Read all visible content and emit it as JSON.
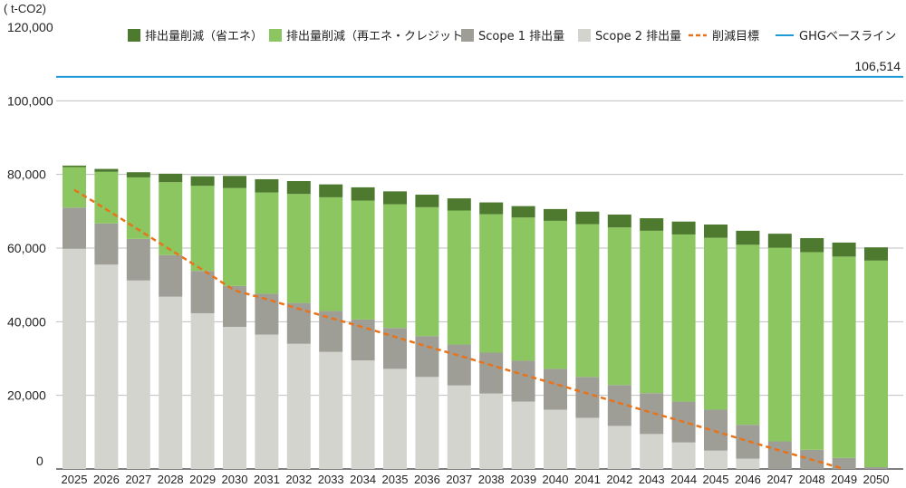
{
  "chart_data": {
    "type": "bar",
    "stacked": true,
    "unit_label": "( t-CO2)",
    "ylim": [
      0,
      120000
    ],
    "y_ticks": [
      {
        "value": 0,
        "label": "0"
      },
      {
        "value": 20000,
        "label": "20,000"
      },
      {
        "value": 40000,
        "label": "40,000"
      },
      {
        "value": 60000,
        "label": "60,000"
      },
      {
        "value": 80000,
        "label": "80,000"
      },
      {
        "value": 100000,
        "label": "100,000"
      },
      {
        "value": 120000,
        "label": "120,000"
      }
    ],
    "categories": [
      "2025",
      "2026",
      "2027",
      "2028",
      "2029",
      "2030",
      "2031",
      "2032",
      "2033",
      "2034",
      "2035",
      "2036",
      "2037",
      "2038",
      "2039",
      "2040",
      "2041",
      "2042",
      "2043",
      "2044",
      "2045",
      "2046",
      "2047",
      "2048",
      "2049",
      "2050"
    ],
    "series": [
      {
        "name": "Scope 2 排出量",
        "color": "#d4d4cf",
        "values": [
          59800,
          55500,
          51200,
          46800,
          42300,
          38600,
          36500,
          34000,
          31800,
          29500,
          27200,
          25000,
          22700,
          20500,
          18300,
          16100,
          13900,
          11700,
          9500,
          7200,
          5000,
          2800,
          0,
          0,
          0,
          0
        ]
      },
      {
        "name": "Scope 1 排出量",
        "color": "#9e9e97",
        "values": [
          11200,
          11200,
          11300,
          11300,
          11500,
          11100,
          11100,
          11100,
          11100,
          11100,
          11100,
          11100,
          11100,
          11100,
          11100,
          11100,
          11100,
          11100,
          11100,
          11100,
          11100,
          9200,
          7500,
          5200,
          3000,
          500
        ]
      },
      {
        "name": "排出量削減（再エネ・クレジット）",
        "color": "#8bc660",
        "values": [
          11000,
          14000,
          16700,
          19800,
          23100,
          26600,
          27500,
          29600,
          30900,
          32300,
          33600,
          35000,
          36400,
          37600,
          38900,
          40200,
          41500,
          42800,
          44100,
          45400,
          46700,
          48900,
          52600,
          53700,
          54700,
          56100
        ]
      },
      {
        "name": "排出量削減（省エネ）",
        "color": "#4d7a2e",
        "values": [
          400,
          800,
          1400,
          2300,
          2600,
          3300,
          3600,
          3500,
          3500,
          3600,
          3500,
          3400,
          3300,
          3200,
          3100,
          3200,
          3400,
          3500,
          3400,
          3500,
          3600,
          3800,
          3800,
          3800,
          3800,
          3600
        ]
      }
    ],
    "reduction_target": {
      "name": "削減目標",
      "color": "#e8731a",
      "values": [
        75800,
        70500,
        65000,
        59500,
        54100,
        48500,
        46100,
        43500,
        41000,
        38500,
        35900,
        33300,
        30800,
        28200,
        25600,
        23100,
        20500,
        17900,
        15300,
        12800,
        10200,
        7600,
        5000,
        2500,
        0,
        0
      ]
    },
    "baseline": {
      "name": "GHGベースライン",
      "color": "#1e9bd7",
      "value": 106514,
      "label": "106,514"
    },
    "legend_order": [
      "排出量削減（省エネ）",
      "排出量削減（再エネ・クレジット）",
      "Scope 1 排出量",
      "Scope 2 排出量",
      "削減目標",
      "GHGベースライン"
    ],
    "legend_placement": "top-right",
    "grid": true
  }
}
